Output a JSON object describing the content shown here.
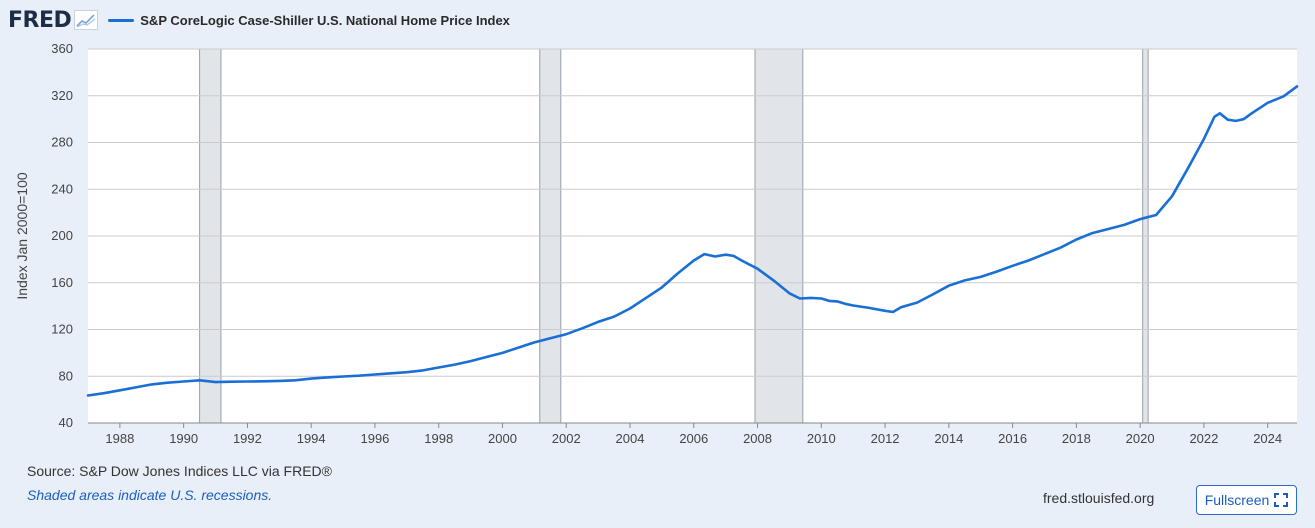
{
  "header": {
    "logo_text": "FRED",
    "logo_icon": "fred-chart-icon",
    "legend_label": "S&P CoreLogic Case-Shiller U.S. National Home Price Index"
  },
  "footer": {
    "source": "Source: S&P Dow Jones Indices LLC via FRED®",
    "shaded_note": "Shaded areas indicate U.S. recessions.",
    "url": "fred.stlouisfed.org",
    "fullscreen_label": "Fullscreen",
    "fullscreen_icon": "expand-icon"
  },
  "colors": {
    "series": "#1a6fd6",
    "recession": "#e1e4e9",
    "background": "#e8eff9",
    "plot": "#ffffff",
    "grid": "#cccccc"
  },
  "chart_data": {
    "type": "line",
    "title": "",
    "xlabel": "",
    "ylabel": "Index Jan 2000=100",
    "xlim": [
      1987.0,
      2024.92
    ],
    "ylim": [
      40,
      360
    ],
    "yticks": [
      40,
      80,
      120,
      160,
      200,
      240,
      280,
      320,
      360
    ],
    "xticks": [
      1988,
      1990,
      1992,
      1994,
      1996,
      1998,
      2000,
      2002,
      2004,
      2006,
      2008,
      2010,
      2012,
      2014,
      2016,
      2018,
      2020,
      2022,
      2024
    ],
    "grid": true,
    "recessions": [
      [
        1990.5,
        1991.17
      ],
      [
        2001.17,
        2001.83
      ],
      [
        2007.92,
        2009.42
      ],
      [
        2020.08,
        2020.25
      ]
    ],
    "series": [
      {
        "name": "S&P CoreLogic Case-Shiller U.S. National Home Price Index",
        "x": [
          1987.0,
          1987.5,
          1988.0,
          1988.5,
          1989.0,
          1989.5,
          1990.0,
          1990.5,
          1991.0,
          1991.5,
          1992.0,
          1992.5,
          1993.0,
          1993.5,
          1994.0,
          1994.5,
          1995.0,
          1995.5,
          1996.0,
          1996.5,
          1997.0,
          1997.5,
          1998.0,
          1998.5,
          1999.0,
          1999.5,
          2000.0,
          2000.5,
          2001.0,
          2001.5,
          2002.0,
          2002.5,
          2003.0,
          2003.5,
          2004.0,
          2004.5,
          2005.0,
          2005.5,
          2006.0,
          2006.33,
          2006.67,
          2007.0,
          2007.25,
          2007.5,
          2008.0,
          2008.5,
          2009.0,
          2009.33,
          2009.67,
          2010.0,
          2010.25,
          2010.5,
          2010.75,
          2011.0,
          2011.5,
          2012.0,
          2012.25,
          2012.5,
          2013.0,
          2013.5,
          2014.0,
          2014.5,
          2015.0,
          2015.5,
          2016.0,
          2016.5,
          2017.0,
          2017.5,
          2018.0,
          2018.5,
          2019.0,
          2019.5,
          2020.0,
          2020.5,
          2021.0,
          2021.5,
          2022.0,
          2022.33,
          2022.5,
          2022.75,
          2023.0,
          2023.25,
          2023.5,
          2024.0,
          2024.5,
          2024.92
        ],
        "values": [
          63.5,
          65.5,
          68.0,
          70.5,
          73.0,
          74.5,
          75.5,
          76.5,
          75.0,
          75.3,
          75.5,
          75.7,
          76.0,
          76.5,
          78.0,
          79.0,
          79.8,
          80.5,
          81.5,
          82.5,
          83.5,
          85.0,
          87.5,
          90.0,
          93.0,
          96.5,
          100.0,
          104.5,
          109.0,
          112.5,
          116.0,
          121.0,
          126.5,
          131.0,
          138.0,
          147.0,
          156.0,
          168.0,
          179.0,
          184.5,
          182.5,
          184.0,
          183.0,
          179.0,
          172.0,
          162.0,
          151.0,
          146.5,
          147.0,
          146.5,
          144.5,
          144.0,
          142.0,
          140.5,
          138.5,
          136.0,
          135.0,
          139.0,
          143.0,
          150.0,
          157.5,
          162.0,
          165.0,
          169.5,
          174.5,
          179.0,
          184.5,
          190.0,
          197.0,
          202.5,
          206.0,
          209.5,
          214.5,
          218.0,
          234.0,
          258.0,
          283.0,
          302.0,
          305.0,
          299.5,
          298.5,
          300.0,
          305.0,
          314.0,
          319.5,
          328.0
        ]
      }
    ]
  }
}
